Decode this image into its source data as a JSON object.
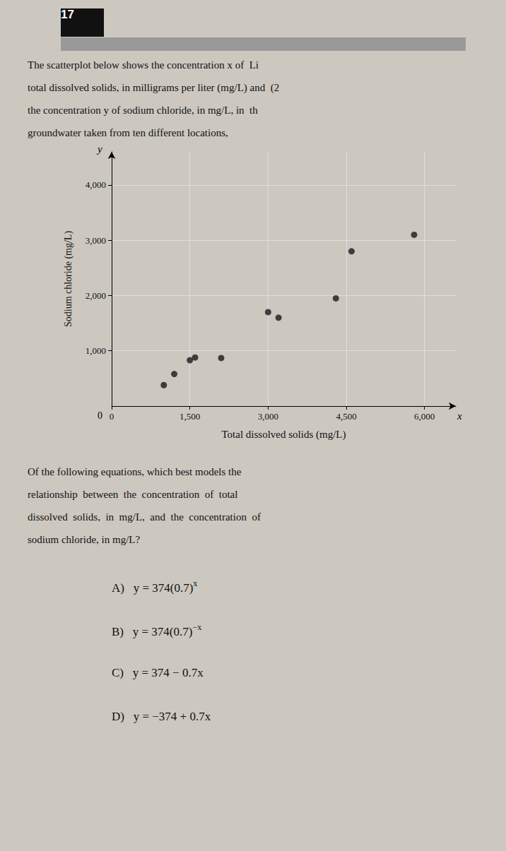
{
  "chart_data": {
    "type": "scatter",
    "x": [
      1000,
      1200,
      1500,
      1600,
      2100,
      3000,
      3200,
      4300,
      4600,
      5800
    ],
    "values": [
      380,
      580,
      830,
      880,
      870,
      1700,
      1600,
      1950,
      2800,
      3100
    ],
    "color": "#1a1a1a",
    "xlim": [
      0,
      6600
    ],
    "ylim": [
      0,
      4600
    ],
    "xticks": [
      0,
      {
        "value": 1500,
        "label": "1,500"
      },
      {
        "value": 3000,
        "label": "3,000"
      },
      {
        "value": 4500,
        "label": "4,500"
      },
      {
        "value": 6000,
        "label": "6,000"
      }
    ],
    "yticks": [
      {
        "value": 1000,
        "label": "1,000"
      },
      {
        "value": 2000,
        "label": "2,000"
      },
      {
        "value": 3000,
        "label": "3,000"
      },
      {
        "value": 4000,
        "label": "4,000"
      }
    ],
    "xlabel": "Total dissolved solids (mg/L)",
    "ylabel": "Sodium chloride (mg/L)",
    "grid": true,
    "x_axis_symbol": "x",
    "y_axis_symbol": "y",
    "origin_label": "0",
    "question_number": "17",
    "intro": [
      "The scatterplot below shows the concentration x of  Li",
      "total dissolved solids, in milligrams per liter (mg/L) and  (2",
      "the concentration y of sodium chloride, in mg/L, in  th",
      "groundwater taken from ten different locations,"
    ],
    "question": [
      "Of the following equations, which best models the",
      "relationship  between  the  concentration  of  total",
      "dissolved  solids,  in  mg/L,  and  the  concentration  of",
      "sodium chloride, in mg/L?"
    ],
    "options": [
      {
        "label": "A)",
        "base": "y = 374(0.7)",
        "exponent": "x"
      },
      {
        "label": "B)",
        "base": "y = 374(0.7)",
        "exponent": "−x"
      },
      {
        "label": "C)",
        "base": "y = 374 − 0.7x"
      },
      {
        "label": "D)",
        "base": "y = −374 + 0.7x"
      }
    ],
    "background_color": "#ccc8c0",
    "banner_color": "#999999",
    "text_color": "#111111"
  }
}
